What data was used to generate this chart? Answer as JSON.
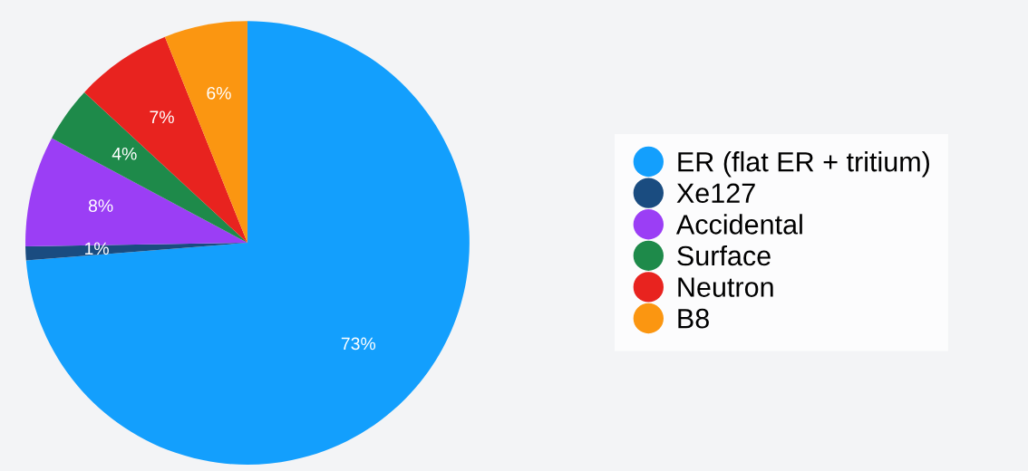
{
  "chart_data": {
    "type": "pie",
    "categories": [
      "ER (flat ER + tritium)",
      "Xe127",
      "Accidental",
      "Surface",
      "Neutron",
      "B8"
    ],
    "values": [
      73,
      1,
      8,
      4,
      7,
      6
    ],
    "value_labels": [
      "73%",
      "1%",
      "8%",
      "4%",
      "7%",
      "6%"
    ],
    "colors": [
      "#139ffd",
      "#1a4c80",
      "#9b3ef5",
      "#1e8a4a",
      "#e8231f",
      "#fb9611"
    ],
    "legend": "right"
  }
}
